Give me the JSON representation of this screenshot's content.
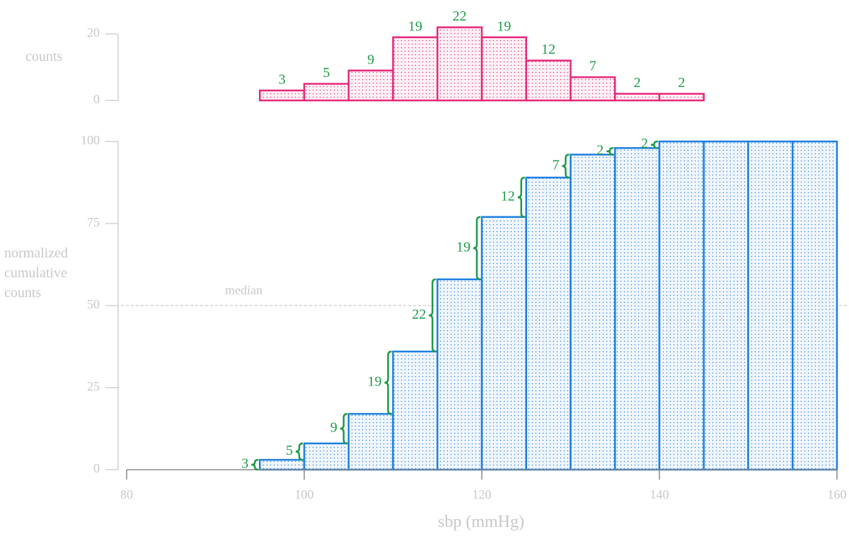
{
  "chart_data": [
    {
      "type": "histogram",
      "y_label": "counts",
      "bins": [
        95,
        100,
        105,
        110,
        115,
        120,
        125,
        130,
        135,
        140,
        145
      ],
      "values": [
        3,
        5,
        9,
        19,
        22,
        19,
        12,
        7,
        2,
        2
      ],
      "color": "#e8287a",
      "label_color": "#1a9c45",
      "ylim": [
        0,
        22
      ],
      "yticks": [
        0,
        20
      ]
    },
    {
      "type": "histogram",
      "y_label": "normalized cumulative counts",
      "x_label": "sbp (mmHg)",
      "bins": [
        95,
        100,
        105,
        110,
        115,
        120,
        125,
        130,
        135,
        140,
        145,
        150,
        155,
        160
      ],
      "values": [
        3,
        8,
        17,
        36,
        58,
        77,
        89,
        96,
        98,
        100,
        100,
        100,
        100
      ],
      "color": "#1e7fe0",
      "brace_color": "#1a9c45",
      "xlim": [
        80,
        160
      ],
      "xticks": [
        80,
        100,
        120,
        140,
        160
      ],
      "ylim": [
        0,
        100
      ],
      "yticks": [
        0,
        25,
        50,
        75,
        100
      ],
      "reference_line": {
        "value": 50,
        "label": "median"
      }
    }
  ]
}
